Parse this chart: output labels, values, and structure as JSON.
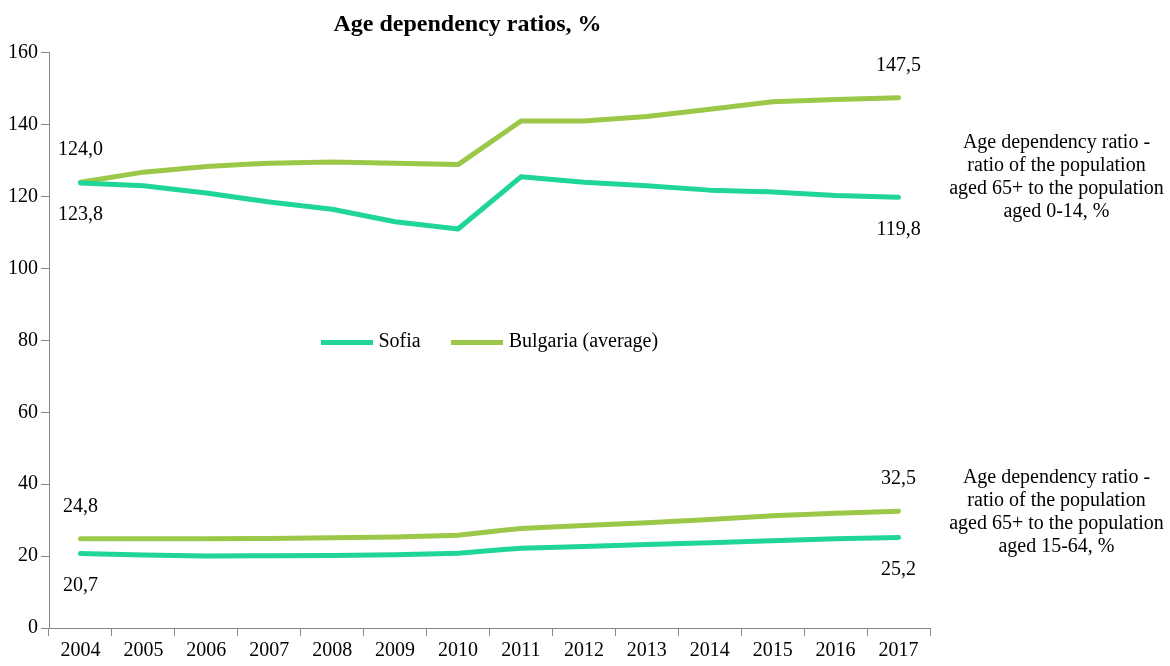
{
  "chart_data": {
    "type": "line",
    "title": "Age dependency ratios, %",
    "categories": [
      "2004",
      "2005",
      "2006",
      "2007",
      "2008",
      "2009",
      "2010",
      "2011",
      "2012",
      "2013",
      "2014",
      "2015",
      "2016",
      "2017"
    ],
    "series": [
      {
        "name": "Sofia",
        "color": "#1fd696",
        "values": [
          123.8,
          123.0,
          121.0,
          118.5,
          116.5,
          113.0,
          111.0,
          125.5,
          124.0,
          123.0,
          121.8,
          121.3,
          120.3,
          119.8
        ],
        "value_labels": [
          "123,8",
          null,
          null,
          null,
          null,
          null,
          null,
          null,
          null,
          null,
          null,
          null,
          null,
          "119,8"
        ]
      },
      {
        "name": "Bulgaria (average)",
        "color": "#9bc848",
        "values": [
          124.0,
          126.8,
          128.4,
          129.3,
          129.6,
          129.3,
          128.9,
          141.0,
          141.0,
          142.3,
          144.3,
          146.4,
          147.0,
          147.5
        ],
        "value_labels": [
          "124,0",
          null,
          null,
          null,
          null,
          null,
          null,
          null,
          null,
          null,
          null,
          null,
          null,
          "147,5"
        ]
      },
      {
        "color": "#1fd696",
        "values": [
          20.7,
          20.3,
          20.0,
          20.1,
          20.2,
          20.4,
          20.8,
          22.2,
          22.7,
          23.2,
          23.7,
          24.3,
          24.8,
          25.2
        ],
        "value_labels": [
          "20,7",
          null,
          null,
          null,
          null,
          null,
          null,
          null,
          null,
          null,
          null,
          null,
          null,
          "25,2"
        ]
      },
      {
        "color": "#9bc848",
        "values": [
          24.8,
          24.8,
          24.8,
          24.9,
          25.1,
          25.3,
          25.8,
          27.7,
          28.5,
          29.3,
          30.2,
          31.2,
          31.9,
          32.5
        ],
        "value_labels": [
          "24,8",
          null,
          null,
          null,
          null,
          null,
          null,
          null,
          null,
          null,
          null,
          null,
          null,
          "32,5"
        ]
      }
    ],
    "ylim": [
      0,
      160
    ],
    "yticks": [
      0,
      20,
      40,
      60,
      80,
      100,
      120,
      140,
      160
    ],
    "grid": false,
    "legend": "center",
    "marker": "none",
    "line_style": "solid",
    "annotations": [
      "Age dependency ratio - ratio of the population aged 65+ to the population aged 0-14, %",
      "Age dependency ratio - ratio of the population aged 65+ to the population aged 15-64, %"
    ]
  }
}
